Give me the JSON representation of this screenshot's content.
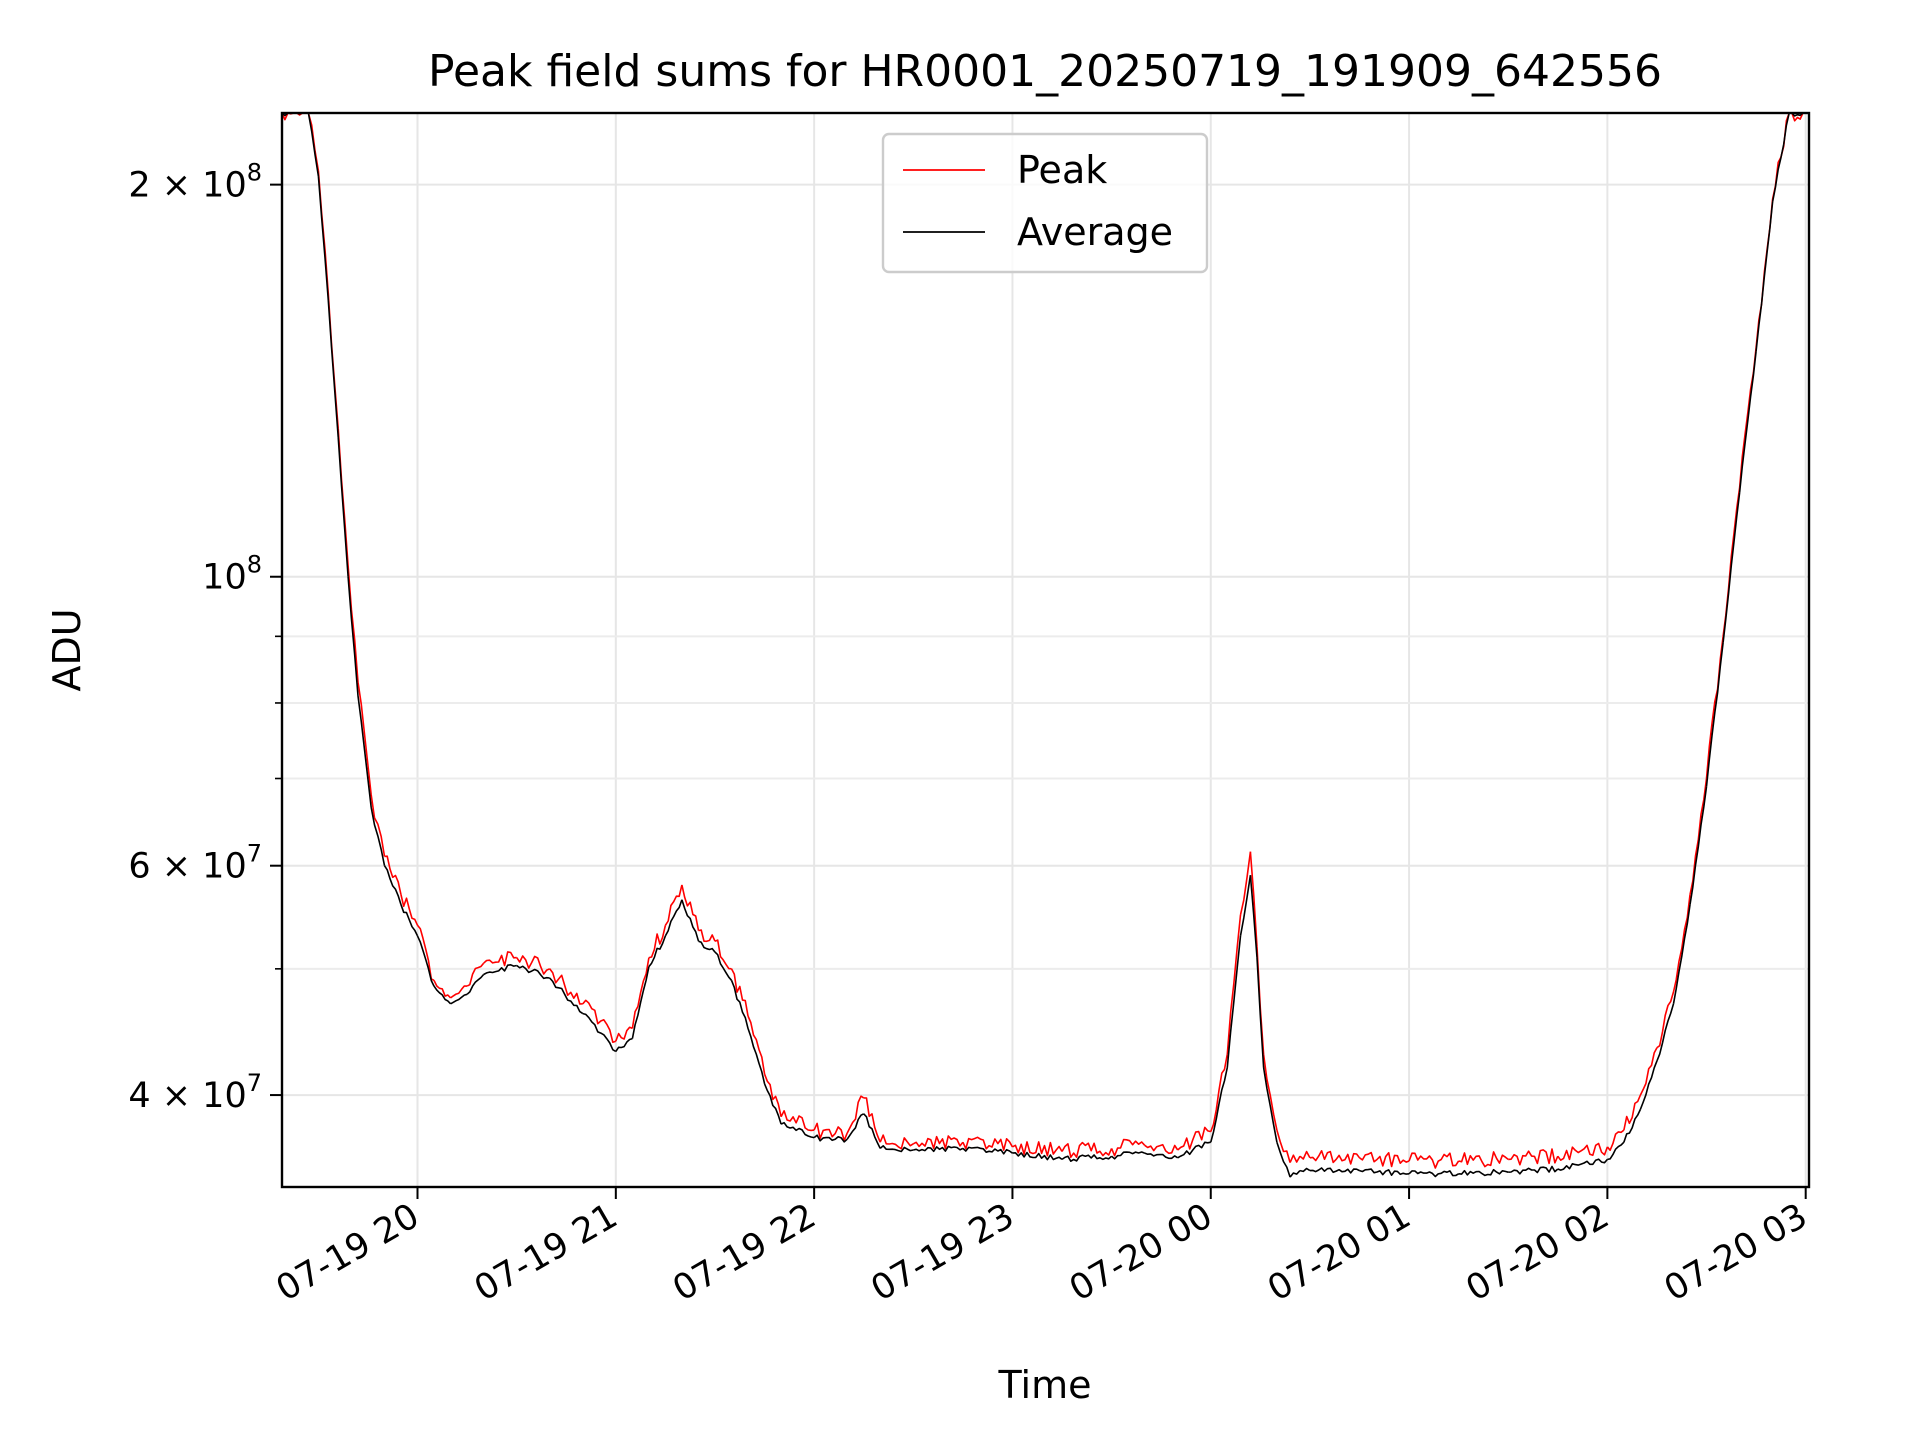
{
  "chart_data": {
    "type": "line",
    "title": "Peak field sums for HR0001_20250719_191909_642556",
    "xlabel": "Time",
    "ylabel": "ADU",
    "yscale": "log",
    "ylim": [
      34000000,
      227000000
    ],
    "xlim": [
      "2025-07-19 19:19",
      "2025-07-20 03:01"
    ],
    "grid": true,
    "legend_position": "top-center",
    "x_tick_labels": [
      "07-19 20",
      "07-19 21",
      "07-19 22",
      "07-19 23",
      "07-20 00",
      "07-20 01",
      "07-20 02",
      "07-20 03"
    ],
    "x_ticks": [
      "2025-07-19 20:00",
      "2025-07-19 21:00",
      "2025-07-19 22:00",
      "2025-07-19 23:00",
      "2025-07-20 00:00",
      "2025-07-20 01:00",
      "2025-07-20 02:00",
      "2025-07-20 03:00"
    ],
    "y_ticks": [
      {
        "value": 40000000,
        "base": "4 × 10",
        "exp": "7"
      },
      {
        "value": 60000000,
        "base": "6 × 10",
        "exp": "7"
      },
      {
        "value": 100000000,
        "base": "10",
        "exp": "8"
      },
      {
        "value": 200000000,
        "base": "2 × 10",
        "exp": "8"
      }
    ],
    "series": [
      {
        "name": "Peak",
        "color": "#ff0000",
        "x": [
          "2025-07-19 19:19",
          "2025-07-19 19:27",
          "2025-07-19 19:30",
          "2025-07-19 19:33",
          "2025-07-19 19:36",
          "2025-07-19 19:39",
          "2025-07-19 19:42",
          "2025-07-19 19:46",
          "2025-07-19 19:50",
          "2025-07-19 19:55",
          "2025-07-19 20:00",
          "2025-07-19 20:05",
          "2025-07-19 20:10",
          "2025-07-19 20:15",
          "2025-07-19 20:20",
          "2025-07-19 20:30",
          "2025-07-19 20:40",
          "2025-07-19 20:50",
          "2025-07-19 21:00",
          "2025-07-19 21:05",
          "2025-07-19 21:10",
          "2025-07-19 21:15",
          "2025-07-19 21:20",
          "2025-07-19 21:25",
          "2025-07-19 21:30",
          "2025-07-19 21:35",
          "2025-07-19 21:40",
          "2025-07-19 21:45",
          "2025-07-19 21:50",
          "2025-07-19 22:00",
          "2025-07-19 22:10",
          "2025-07-19 22:15",
          "2025-07-19 22:20",
          "2025-07-19 22:30",
          "2025-07-19 22:45",
          "2025-07-19 23:00",
          "2025-07-19 23:15",
          "2025-07-19 23:30",
          "2025-07-19 23:40",
          "2025-07-19 23:50",
          "2025-07-20 00:00",
          "2025-07-20 00:05",
          "2025-07-20 00:09",
          "2025-07-20 00:12",
          "2025-07-20 00:14",
          "2025-07-20 00:16",
          "2025-07-20 00:20",
          "2025-07-20 00:24",
          "2025-07-20 00:27",
          "2025-07-20 00:30",
          "2025-07-20 00:45",
          "2025-07-20 01:00",
          "2025-07-20 01:15",
          "2025-07-20 01:30",
          "2025-07-20 01:45",
          "2025-07-20 02:00",
          "2025-07-20 02:05",
          "2025-07-20 02:10",
          "2025-07-20 02:15",
          "2025-07-20 02:20",
          "2025-07-20 02:25",
          "2025-07-20 02:30",
          "2025-07-20 02:35",
          "2025-07-20 02:40",
          "2025-07-20 02:45",
          "2025-07-20 02:50",
          "2025-07-20 02:55",
          "2025-07-20 03:00"
        ],
        "y": [
          227000000,
          227000000,
          205000000,
          165000000,
          130000000,
          102000000,
          83000000,
          68000000,
          61000000,
          57000000,
          54000000,
          49000000,
          47500000,
          48500000,
          50500000,
          51000000,
          50000000,
          47000000,
          44000000,
          45000000,
          51000000,
          54000000,
          58000000,
          53500000,
          52500000,
          50000000,
          46000000,
          41500000,
          38500000,
          37600000,
          37400000,
          39800000,
          36800000,
          36700000,
          36800000,
          36500000,
          36200000,
          36400000,
          36600000,
          36300000,
          37500000,
          43000000,
          55000000,
          61500000,
          52000000,
          43000000,
          37600000,
          35500000,
          35900000,
          35800000,
          35800000,
          35600000,
          35600000,
          35700000,
          35900000,
          36500000,
          37600000,
          40000000,
          43500000,
          48000000,
          57000000,
          70000000,
          90000000,
          117000000,
          150000000,
          195000000,
          227000000,
          227000000
        ]
      },
      {
        "name": "Average",
        "color": "#000000",
        "x": [
          "2025-07-19 19:19",
          "2025-07-19 19:27",
          "2025-07-19 19:30",
          "2025-07-19 19:33",
          "2025-07-19 19:36",
          "2025-07-19 19:39",
          "2025-07-19 19:42",
          "2025-07-19 19:46",
          "2025-07-19 19:50",
          "2025-07-19 19:55",
          "2025-07-19 20:00",
          "2025-07-19 20:05",
          "2025-07-19 20:10",
          "2025-07-19 20:15",
          "2025-07-19 20:20",
          "2025-07-19 20:30",
          "2025-07-19 20:40",
          "2025-07-19 20:50",
          "2025-07-19 21:00",
          "2025-07-19 21:05",
          "2025-07-19 21:10",
          "2025-07-19 21:15",
          "2025-07-19 21:20",
          "2025-07-19 21:25",
          "2025-07-19 21:30",
          "2025-07-19 21:35",
          "2025-07-19 21:40",
          "2025-07-19 21:45",
          "2025-07-19 21:50",
          "2025-07-19 22:00",
          "2025-07-19 22:10",
          "2025-07-19 22:15",
          "2025-07-19 22:20",
          "2025-07-19 22:30",
          "2025-07-19 22:45",
          "2025-07-19 23:00",
          "2025-07-19 23:15",
          "2025-07-19 23:30",
          "2025-07-19 23:40",
          "2025-07-19 23:50",
          "2025-07-20 00:00",
          "2025-07-20 00:05",
          "2025-07-20 00:09",
          "2025-07-20 00:12",
          "2025-07-20 00:14",
          "2025-07-20 00:16",
          "2025-07-20 00:20",
          "2025-07-20 00:24",
          "2025-07-20 00:27",
          "2025-07-20 00:30",
          "2025-07-20 00:45",
          "2025-07-20 01:00",
          "2025-07-20 01:15",
          "2025-07-20 01:30",
          "2025-07-20 01:45",
          "2025-07-20 02:00",
          "2025-07-20 02:05",
          "2025-07-20 02:10",
          "2025-07-20 02:15",
          "2025-07-20 02:20",
          "2025-07-20 02:25",
          "2025-07-20 02:30",
          "2025-07-20 02:35",
          "2025-07-20 02:40",
          "2025-07-20 02:45",
          "2025-07-20 02:50",
          "2025-07-20 02:55",
          "2025-07-20 03:00"
        ],
        "y": [
          227000000,
          227000000,
          203000000,
          163000000,
          128000000,
          100000000,
          81000000,
          66500000,
          60000000,
          56000000,
          53000000,
          48500000,
          47000000,
          47800000,
          49500000,
          50300000,
          49200000,
          46200000,
          43200000,
          44200000,
          50200000,
          53000000,
          56500000,
          52500000,
          51500000,
          49000000,
          45000000,
          40800000,
          38000000,
          37100000,
          37000000,
          38700000,
          36400000,
          36300000,
          36400000,
          36100000,
          35700000,
          35900000,
          36100000,
          35800000,
          36800000,
          42000000,
          53000000,
          59000000,
          51000000,
          42000000,
          36800000,
          34600000,
          35000000,
          35000000,
          35000000,
          34800000,
          34800000,
          34900000,
          35100000,
          35700000,
          36800000,
          39000000,
          42500000,
          47000000,
          56000000,
          69000000,
          89000000,
          116000000,
          149000000,
          194000000,
          227000000,
          227000000
        ]
      }
    ]
  }
}
